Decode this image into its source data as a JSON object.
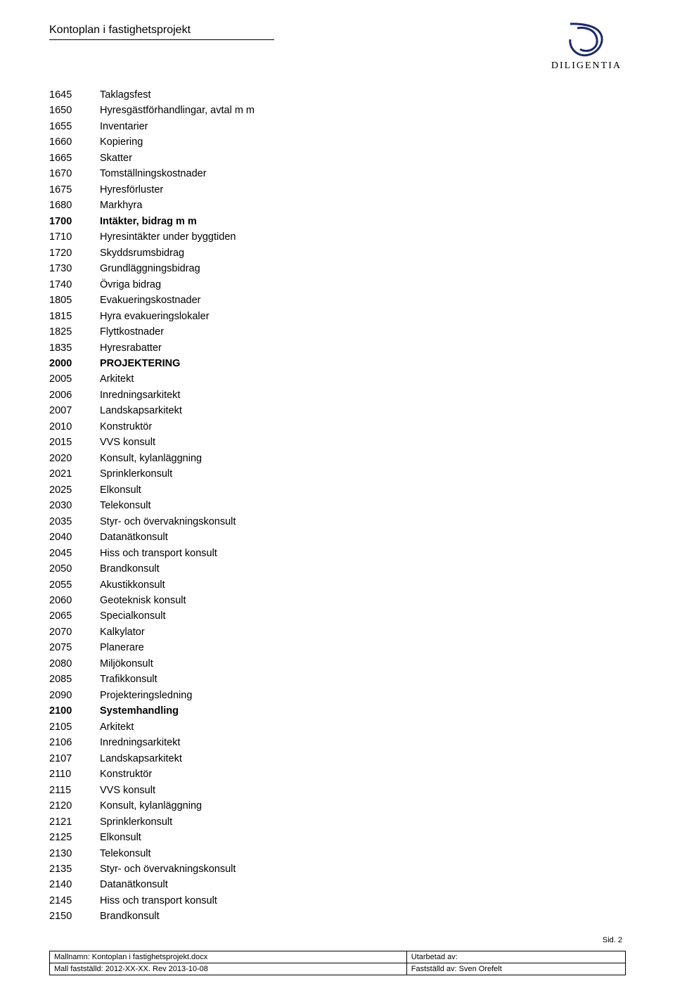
{
  "header": {
    "title": "Kontoplan i fastighetsprojekt",
    "logo_name": "DILIGENTIA",
    "logo_color": "#1a2a6c"
  },
  "page_label": "Sid. 2",
  "footer": {
    "r1c1": "Mallnamn: Kontoplan i fastighetsprojekt.docx",
    "r1c2": "Utarbetad av:",
    "r2c1": "Mall fastställd: 2012-XX-XX. Rev 2013-10-08",
    "r2c2": "Fastställd av: Sven Orefelt"
  },
  "rows": [
    {
      "code": "1645",
      "label": "Taklagsfest",
      "bold": false
    },
    {
      "code": "1650",
      "label": "Hyresgästförhandlingar, avtal m m",
      "bold": false
    },
    {
      "code": "1655",
      "label": "Inventarier",
      "bold": false
    },
    {
      "code": "1660",
      "label": "Kopiering",
      "bold": false
    },
    {
      "code": "1665",
      "label": "Skatter",
      "bold": false
    },
    {
      "code": "1670",
      "label": "Tomställningskostnader",
      "bold": false
    },
    {
      "code": "1675",
      "label": "Hyresförluster",
      "bold": false
    },
    {
      "code": "1680",
      "label": "Markhyra",
      "bold": false
    },
    {
      "code": "1700",
      "label": "Intäkter, bidrag m m",
      "bold": true
    },
    {
      "code": "1710",
      "label": "Hyresintäkter under byggtiden",
      "bold": false
    },
    {
      "code": "1720",
      "label": "Skyddsrumsbidrag",
      "bold": false
    },
    {
      "code": "1730",
      "label": "Grundläggningsbidrag",
      "bold": false
    },
    {
      "code": "1740",
      "label": "Övriga bidrag",
      "bold": false
    },
    {
      "code": "1805",
      "label": "Evakueringskostnader",
      "bold": false
    },
    {
      "code": "1815",
      "label": "Hyra evakueringslokaler",
      "bold": false
    },
    {
      "code": "1825",
      "label": "Flyttkostnader",
      "bold": false
    },
    {
      "code": "1835",
      "label": "Hyresrabatter",
      "bold": false
    },
    {
      "code": "2000",
      "label": "PROJEKTERING",
      "bold": true
    },
    {
      "code": "2005",
      "label": "Arkitekt",
      "bold": false
    },
    {
      "code": "2006",
      "label": "Inredningsarkitekt",
      "bold": false
    },
    {
      "code": "2007",
      "label": "Landskapsarkitekt",
      "bold": false
    },
    {
      "code": "2010",
      "label": "Konstruktör",
      "bold": false
    },
    {
      "code": "2015",
      "label": "VVS konsult",
      "bold": false
    },
    {
      "code": "2020",
      "label": "Konsult, kylanläggning",
      "bold": false
    },
    {
      "code": "2021",
      "label": "Sprinklerkonsult",
      "bold": false
    },
    {
      "code": "2025",
      "label": "Elkonsult",
      "bold": false
    },
    {
      "code": "2030",
      "label": "Telekonsult",
      "bold": false
    },
    {
      "code": "2035",
      "label": "Styr- och övervakningskonsult",
      "bold": false
    },
    {
      "code": "2040",
      "label": "Datanätkonsult",
      "bold": false
    },
    {
      "code": "2045",
      "label": "Hiss och transport konsult",
      "bold": false
    },
    {
      "code": "2050",
      "label": "Brandkonsult",
      "bold": false
    },
    {
      "code": "2055",
      "label": "Akustikkonsult",
      "bold": false
    },
    {
      "code": "2060",
      "label": "Geoteknisk konsult",
      "bold": false
    },
    {
      "code": "2065",
      "label": "Specialkonsult",
      "bold": false
    },
    {
      "code": "2070",
      "label": "Kalkylator",
      "bold": false
    },
    {
      "code": "2075",
      "label": "Planerare",
      "bold": false
    },
    {
      "code": "2080",
      "label": "Miljökonsult",
      "bold": false
    },
    {
      "code": "2085",
      "label": "Trafikkonsult",
      "bold": false
    },
    {
      "code": "2090",
      "label": "Projekteringsledning",
      "bold": false
    },
    {
      "code": "2100",
      "label": "Systemhandling",
      "bold": true
    },
    {
      "code": "2105",
      "label": "Arkitekt",
      "bold": false
    },
    {
      "code": "2106",
      "label": "Inredningsarkitekt",
      "bold": false
    },
    {
      "code": "2107",
      "label": "Landskapsarkitekt",
      "bold": false
    },
    {
      "code": "2110",
      "label": "Konstruktör",
      "bold": false
    },
    {
      "code": "2115",
      "label": "VVS konsult",
      "bold": false
    },
    {
      "code": "2120",
      "label": "Konsult, kylanläggning",
      "bold": false
    },
    {
      "code": "2121",
      "label": "Sprinklerkonsult",
      "bold": false
    },
    {
      "code": "2125",
      "label": "Elkonsult",
      "bold": false
    },
    {
      "code": "2130",
      "label": "Telekonsult",
      "bold": false
    },
    {
      "code": "2135",
      "label": "Styr- och övervakningskonsult",
      "bold": false
    },
    {
      "code": "2140",
      "label": "Datanätkonsult",
      "bold": false
    },
    {
      "code": "2145",
      "label": "Hiss och transport konsult",
      "bold": false
    },
    {
      "code": "2150",
      "label": "Brandkonsult",
      "bold": false
    }
  ]
}
